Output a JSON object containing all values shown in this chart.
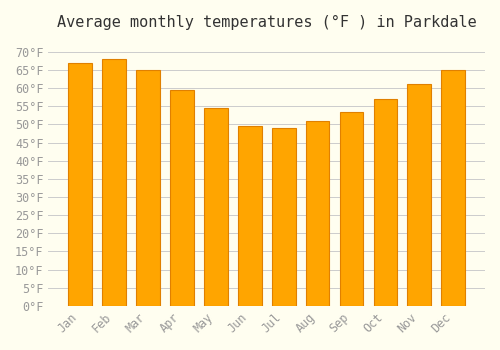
{
  "title": "Average monthly temperatures (°F ) in Parkdale",
  "months": [
    "Jan",
    "Feb",
    "Mar",
    "Apr",
    "May",
    "Jun",
    "Jul",
    "Aug",
    "Sep",
    "Oct",
    "Nov",
    "Dec"
  ],
  "values": [
    67,
    68,
    65,
    59.5,
    54.5,
    49.5,
    49,
    51,
    53.5,
    57,
    61,
    65
  ],
  "bar_color": "#FFA500",
  "bar_edge_color": "#E08000",
  "background_color": "#FFFEF0",
  "grid_color": "#CCCCCC",
  "ytick_labels": [
    "0°F",
    "5°F",
    "10°F",
    "15°F",
    "20°F",
    "25°F",
    "30°F",
    "35°F",
    "40°F",
    "45°F",
    "50°F",
    "55°F",
    "60°F",
    "65°F",
    "70°F"
  ],
  "ytick_values": [
    0,
    5,
    10,
    15,
    20,
    25,
    30,
    35,
    40,
    45,
    50,
    55,
    60,
    65,
    70
  ],
  "ylim": [
    0,
    73
  ],
  "title_fontsize": 11,
  "tick_fontsize": 8.5,
  "tick_color": "#999999",
  "title_color": "#333333",
  "figsize": [
    5.0,
    3.5
  ],
  "dpi": 100
}
